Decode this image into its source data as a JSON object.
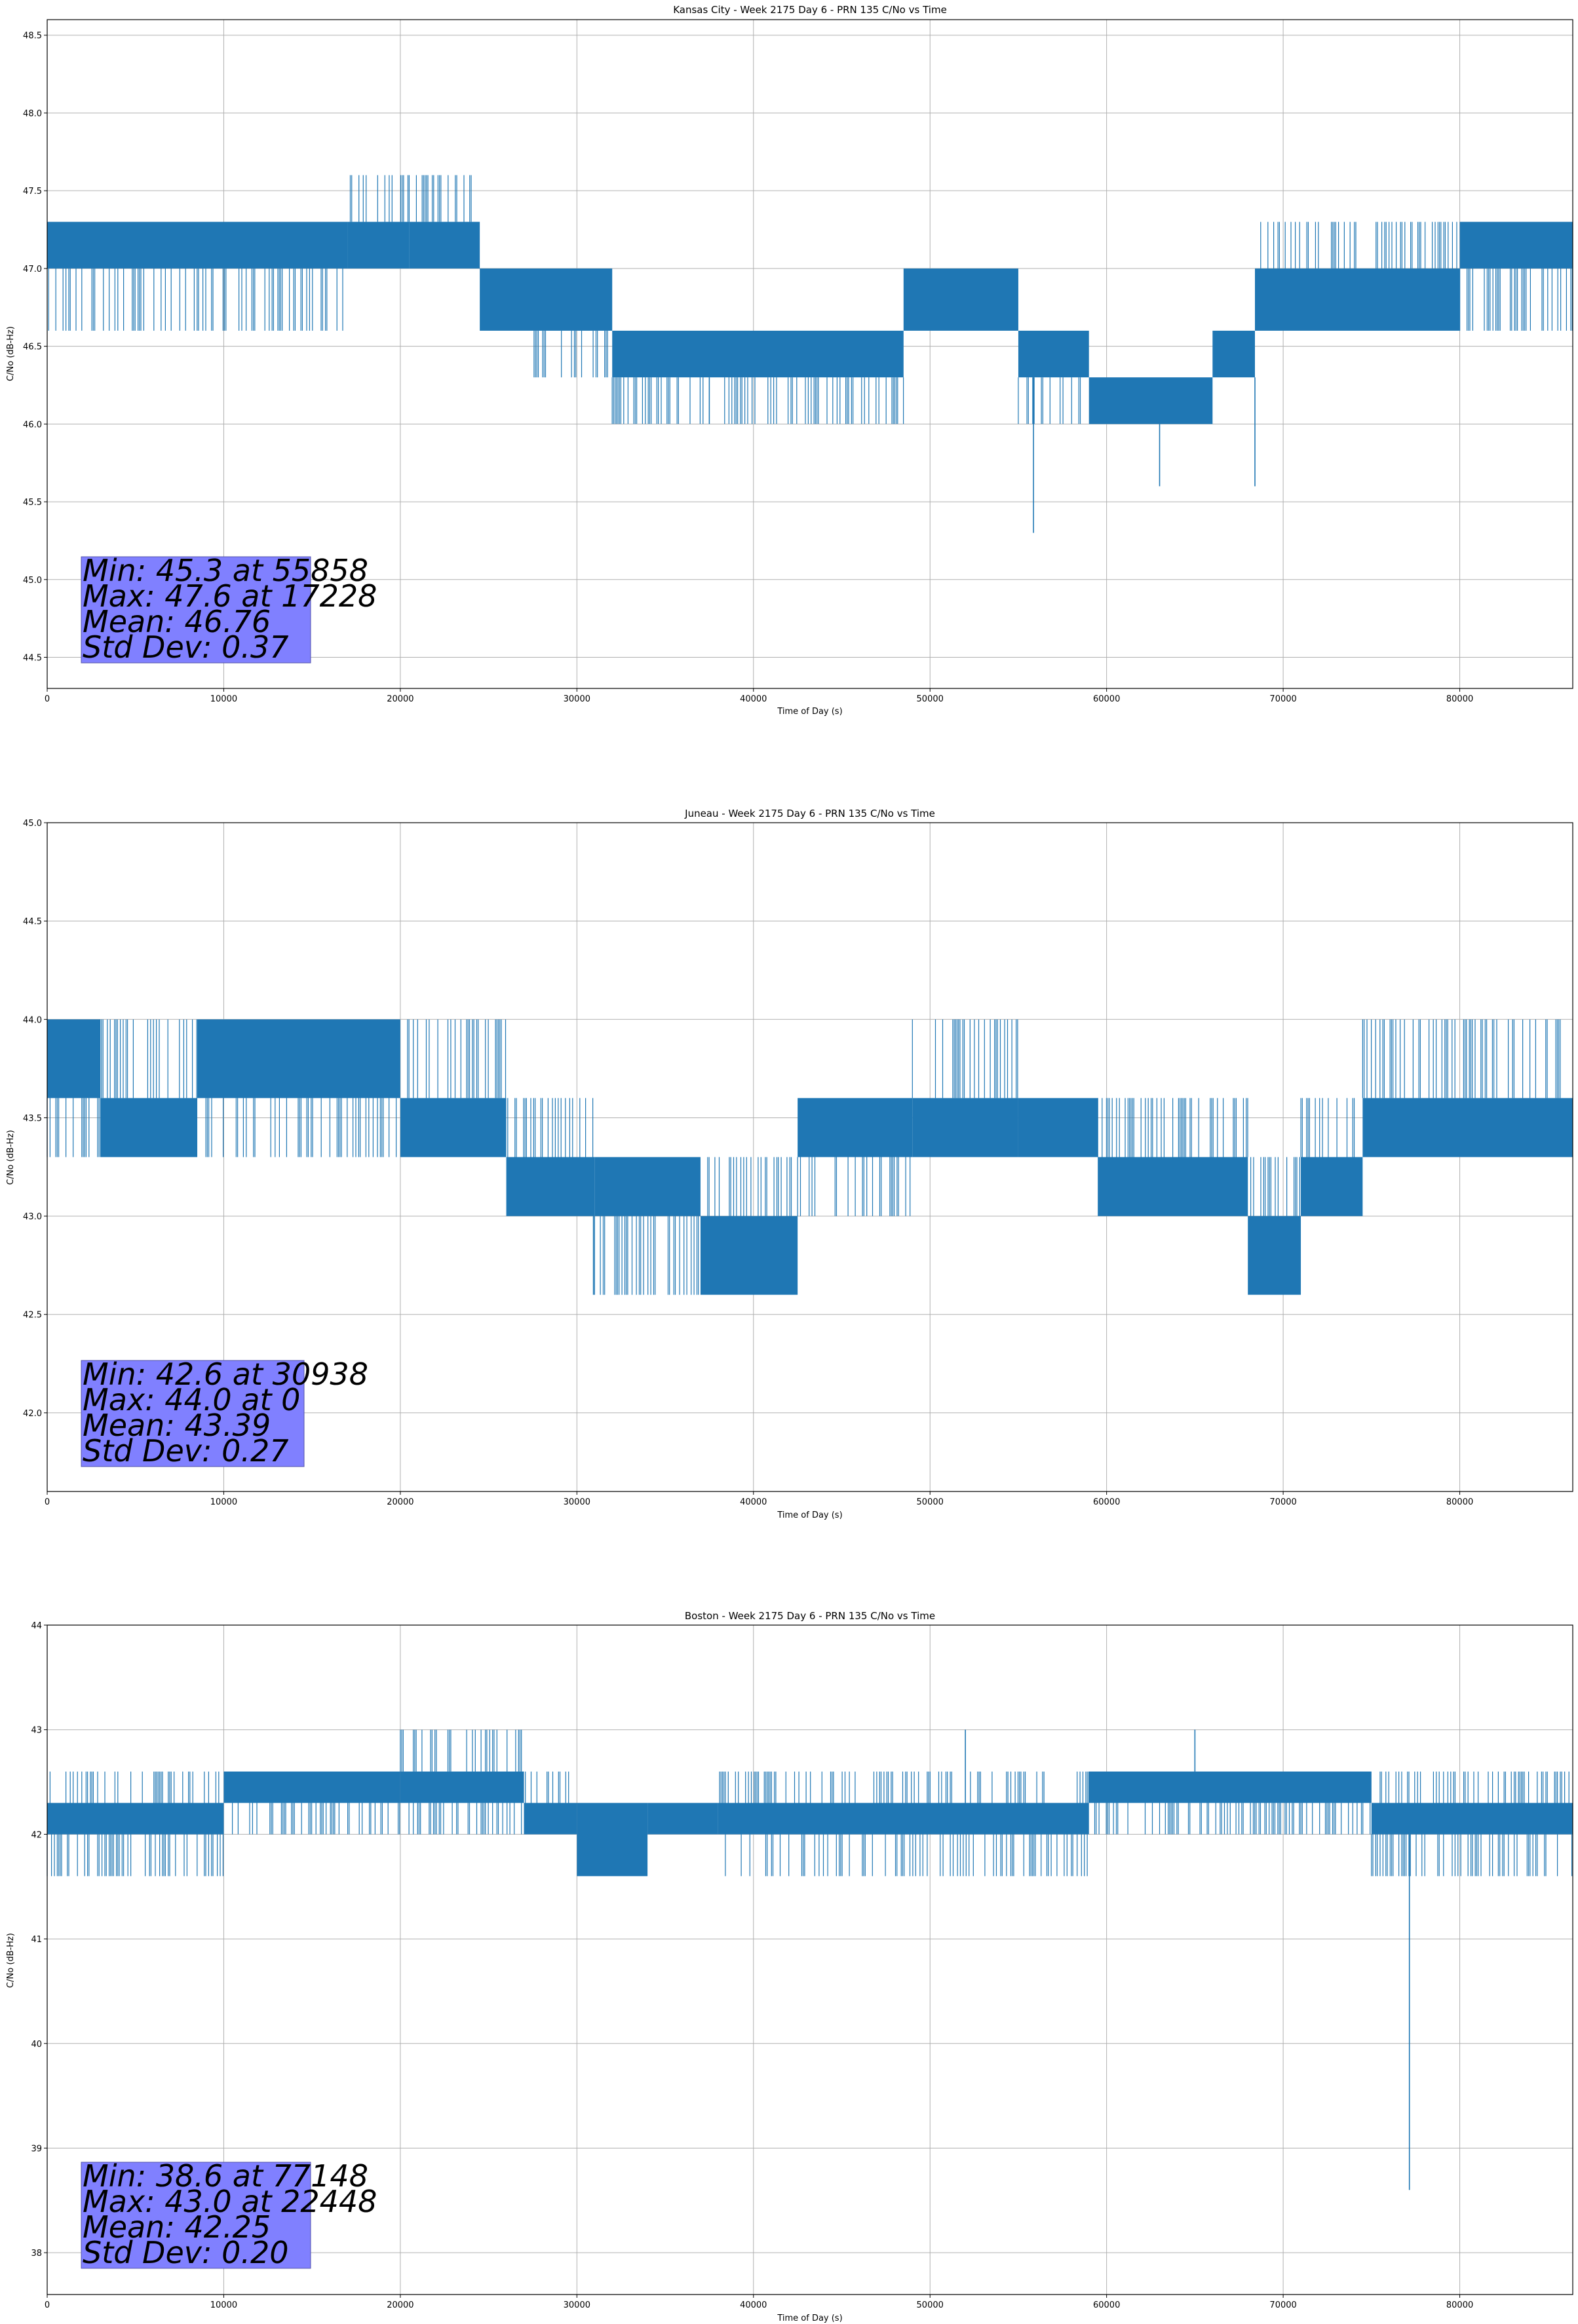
{
  "chart_data": [
    {
      "type": "line",
      "title": "Kansas City - Week 2175 Day 6 - PRN 135 C/No vs Time",
      "xlabel": "Time of Day (s)",
      "ylabel": "C/No (dB-Hz)",
      "xlim": [
        0,
        86400
      ],
      "ylim": [
        44.3,
        48.6
      ],
      "xticks": [
        0,
        10000,
        20000,
        30000,
        40000,
        50000,
        60000,
        70000,
        80000
      ],
      "xtick_labels": [
        "0",
        "10000",
        "20000",
        "30000",
        "40000",
        "50000",
        "60000",
        "70000",
        "80000"
      ],
      "yticks": [
        44.5,
        45.0,
        45.5,
        46.0,
        46.5,
        47.0,
        47.5,
        48.0,
        48.5
      ],
      "ytick_labels": [
        "44.5",
        "45.0",
        "45.5",
        "46.0",
        "46.5",
        "47.0",
        "47.5",
        "48.0",
        "48.5"
      ],
      "grid": true,
      "line_color": "#1f77b4",
      "series": [
        {
          "name": "C/No",
          "x": [
            0,
            17000,
            17300,
            20000,
            24500,
            27000,
            31500,
            36000,
            40000,
            48500,
            51000,
            55000,
            56000,
            58000,
            60000,
            62000,
            64000,
            66000,
            68400,
            70000,
            72000,
            75000,
            80000,
            81500,
            86400
          ],
          "y": [
            47.1,
            47.1,
            47.4,
            47.3,
            47.1,
            46.8,
            46.5,
            46.4,
            46.4,
            46.5,
            46.8,
            46.5,
            46.5,
            46.4,
            46.1,
            46.1,
            46.1,
            46.2,
            46.5,
            46.8,
            46.8,
            46.8,
            46.8,
            47.1,
            47.1
          ]
        }
      ],
      "bands": [
        {
          "x0": 0,
          "x1": 17000,
          "ylo": 47.0,
          "yhi": 47.3,
          "down": 46.6,
          "up": null
        },
        {
          "x0": 17000,
          "x1": 20500,
          "ylo": 47.0,
          "yhi": 47.3,
          "down": null,
          "up": 47.6
        },
        {
          "x0": 20500,
          "x1": 24500,
          "ylo": 47.0,
          "yhi": 47.3,
          "down": null,
          "up": 47.6
        },
        {
          "x0": 24500,
          "x1": 27000,
          "ylo": 46.6,
          "yhi": 47.0,
          "down": null,
          "up": null
        },
        {
          "x0": 27000,
          "x1": 32000,
          "ylo": 46.6,
          "yhi": 47.0,
          "down": 46.3,
          "up": null
        },
        {
          "x0": 32000,
          "x1": 48500,
          "ylo": 46.3,
          "yhi": 46.6,
          "down": 46.0,
          "up": null
        },
        {
          "x0": 48500,
          "x1": 55000,
          "ylo": 46.6,
          "yhi": 47.0,
          "down": null,
          "up": null
        },
        {
          "x0": 55000,
          "x1": 59000,
          "ylo": 46.3,
          "yhi": 46.6,
          "down": 46.0,
          "up": null
        },
        {
          "x0": 59000,
          "x1": 66000,
          "ylo": 46.0,
          "yhi": 46.3,
          "down": null,
          "up": null
        },
        {
          "x0": 66000,
          "x1": 68400,
          "ylo": 46.3,
          "yhi": 46.6,
          "down": null,
          "up": null
        },
        {
          "x0": 68400,
          "x1": 80000,
          "ylo": 46.6,
          "yhi": 47.0,
          "down": null,
          "up": 47.3
        },
        {
          "x0": 80000,
          "x1": 86400,
          "ylo": 47.0,
          "yhi": 47.3,
          "down": 46.6,
          "up": null
        }
      ],
      "spikes": [
        {
          "x": 55858,
          "y": 45.3
        },
        {
          "x": 63000,
          "y": 45.6
        },
        {
          "x": 68400,
          "y": 45.6
        },
        {
          "x": 37500,
          "y": 46.0
        }
      ],
      "stats": [
        "Min: 45.3 at 55858",
        "Max: 47.6 at 17228",
        "Mean: 46.76",
        "Std Dev: 0.37"
      ]
    },
    {
      "type": "line",
      "title": "Juneau - Week 2175 Day 6 - PRN 135 C/No vs Time",
      "xlabel": "Time of Day (s)",
      "ylabel": "C/No (dB-Hz)",
      "xlim": [
        0,
        86400
      ],
      "ylim": [
        41.6,
        45.0
      ],
      "xticks": [
        0,
        10000,
        20000,
        30000,
        40000,
        50000,
        60000,
        70000,
        80000
      ],
      "xtick_labels": [
        "0",
        "10000",
        "20000",
        "30000",
        "40000",
        "50000",
        "60000",
        "70000",
        "80000"
      ],
      "yticks": [
        42.0,
        42.5,
        43.0,
        43.5,
        44.0,
        44.5,
        45.0
      ],
      "ytick_labels": [
        "42.0",
        "42.5",
        "43.0",
        "43.5",
        "44.0",
        "44.5",
        "45.0"
      ],
      "grid": true,
      "line_color": "#1f77b4",
      "series": [
        {
          "name": "C/No",
          "x": [
            0,
            3000,
            8500,
            20000,
            26000,
            30000,
            36000,
            40000,
            43000,
            49000,
            55000,
            59500,
            64000,
            68000,
            71000,
            74500,
            86400
          ],
          "y": [
            43.8,
            43.5,
            43.5,
            43.7,
            43.5,
            43.2,
            43.1,
            42.9,
            43.2,
            43.6,
            43.5,
            43.2,
            43.2,
            43.1,
            43.2,
            43.5,
            43.5
          ]
        }
      ],
      "bands": [
        {
          "x0": 0,
          "x1": 3000,
          "ylo": 43.6,
          "yhi": 44.0,
          "down": 43.3,
          "up": null
        },
        {
          "x0": 3000,
          "x1": 8500,
          "ylo": 43.3,
          "yhi": 43.6,
          "down": null,
          "up": 44.0
        },
        {
          "x0": 8500,
          "x1": 20000,
          "ylo": 43.6,
          "yhi": 44.0,
          "down": 43.3,
          "up": null
        },
        {
          "x0": 20000,
          "x1": 26000,
          "ylo": 43.3,
          "yhi": 43.6,
          "down": null,
          "up": 44.0
        },
        {
          "x0": 26000,
          "x1": 31000,
          "ylo": 43.0,
          "yhi": 43.3,
          "down": null,
          "up": 43.6
        },
        {
          "x0": 31000,
          "x1": 37000,
          "ylo": 43.0,
          "yhi": 43.3,
          "down": 42.6,
          "up": null
        },
        {
          "x0": 37000,
          "x1": 42500,
          "ylo": 42.6,
          "yhi": 43.0,
          "down": null,
          "up": 43.3
        },
        {
          "x0": 42500,
          "x1": 49000,
          "ylo": 43.3,
          "yhi": 43.6,
          "down": 43.0,
          "up": null
        },
        {
          "x0": 49000,
          "x1": 55000,
          "ylo": 43.3,
          "yhi": 43.6,
          "down": null,
          "up": 44.0
        },
        {
          "x0": 55000,
          "x1": 59500,
          "ylo": 43.3,
          "yhi": 43.6,
          "down": null,
          "up": null
        },
        {
          "x0": 59500,
          "x1": 68000,
          "ylo": 43.0,
          "yhi": 43.3,
          "down": null,
          "up": 43.6
        },
        {
          "x0": 68000,
          "x1": 71000,
          "ylo": 42.6,
          "yhi": 43.0,
          "down": null,
          "up": 43.3
        },
        {
          "x0": 71000,
          "x1": 74500,
          "ylo": 43.0,
          "yhi": 43.3,
          "down": null,
          "up": 43.6
        },
        {
          "x0": 74500,
          "x1": 86400,
          "ylo": 43.3,
          "yhi": 43.6,
          "down": null,
          "up": 44.0
        }
      ],
      "spikes": [
        {
          "x": 30938,
          "y": 42.6
        }
      ],
      "stats": [
        "Min: 42.6 at 30938",
        "Max: 44.0 at 0",
        "Mean: 43.39",
        "Std Dev: 0.27"
      ]
    },
    {
      "type": "line",
      "title": "Boston - Week 2175 Day 6 - PRN 135 C/No vs Time",
      "xlabel": "Time of Day (s)",
      "ylabel": "C/No (dB-Hz)",
      "xlim": [
        0,
        86400
      ],
      "ylim": [
        37.6,
        44.0
      ],
      "xticks": [
        0,
        10000,
        20000,
        30000,
        40000,
        50000,
        60000,
        70000,
        80000
      ],
      "xtick_labels": [
        "0",
        "10000",
        "20000",
        "30000",
        "40000",
        "50000",
        "60000",
        "70000",
        "80000"
      ],
      "yticks": [
        38,
        39,
        40,
        41,
        42,
        43,
        44
      ],
      "ytick_labels": [
        "38",
        "39",
        "40",
        "41",
        "42",
        "43",
        "44"
      ],
      "grid": true,
      "line_color": "#1f77b4",
      "series": [
        {
          "name": "C/No",
          "x": [
            0,
            10000,
            22000,
            29500,
            33000,
            35000,
            38000,
            55000,
            60000,
            70000,
            75000,
            86400
          ],
          "y": [
            42.2,
            42.3,
            42.4,
            42.3,
            42.1,
            42.2,
            42.2,
            42.3,
            42.4,
            42.4,
            42.2,
            42.2
          ]
        }
      ],
      "bands": [
        {
          "x0": 0,
          "x1": 10000,
          "ylo": 42.0,
          "yhi": 42.3,
          "down": 41.6,
          "up": 42.6
        },
        {
          "x0": 10000,
          "x1": 20000,
          "ylo": 42.3,
          "yhi": 42.6,
          "down": 42.0,
          "up": null
        },
        {
          "x0": 20000,
          "x1": 27000,
          "ylo": 42.3,
          "yhi": 42.6,
          "down": 42.0,
          "up": 43.0
        },
        {
          "x0": 27000,
          "x1": 30000,
          "ylo": 42.0,
          "yhi": 42.3,
          "down": null,
          "up": 42.6
        },
        {
          "x0": 30000,
          "x1": 34000,
          "ylo": 41.6,
          "yhi": 42.3,
          "down": null,
          "up": null
        },
        {
          "x0": 34000,
          "x1": 38000,
          "ylo": 42.0,
          "yhi": 42.3,
          "down": null,
          "up": null
        },
        {
          "x0": 38000,
          "x1": 59000,
          "ylo": 42.0,
          "yhi": 42.3,
          "down": 41.6,
          "up": 42.6
        },
        {
          "x0": 59000,
          "x1": 75000,
          "ylo": 42.3,
          "yhi": 42.6,
          "down": 42.0,
          "up": null
        },
        {
          "x0": 75000,
          "x1": 86400,
          "ylo": 42.0,
          "yhi": 42.3,
          "down": 41.6,
          "up": 42.6
        }
      ],
      "spikes": [
        {
          "x": 77148,
          "y": 38.6
        },
        {
          "x": 52000,
          "y": 43.0
        },
        {
          "x": 65000,
          "y": 43.0
        }
      ],
      "stats": [
        "Min: 38.6 at 77148",
        "Max: 43.0 at 22448",
        "Mean: 42.25",
        "Std Dev: 0.20"
      ]
    }
  ]
}
